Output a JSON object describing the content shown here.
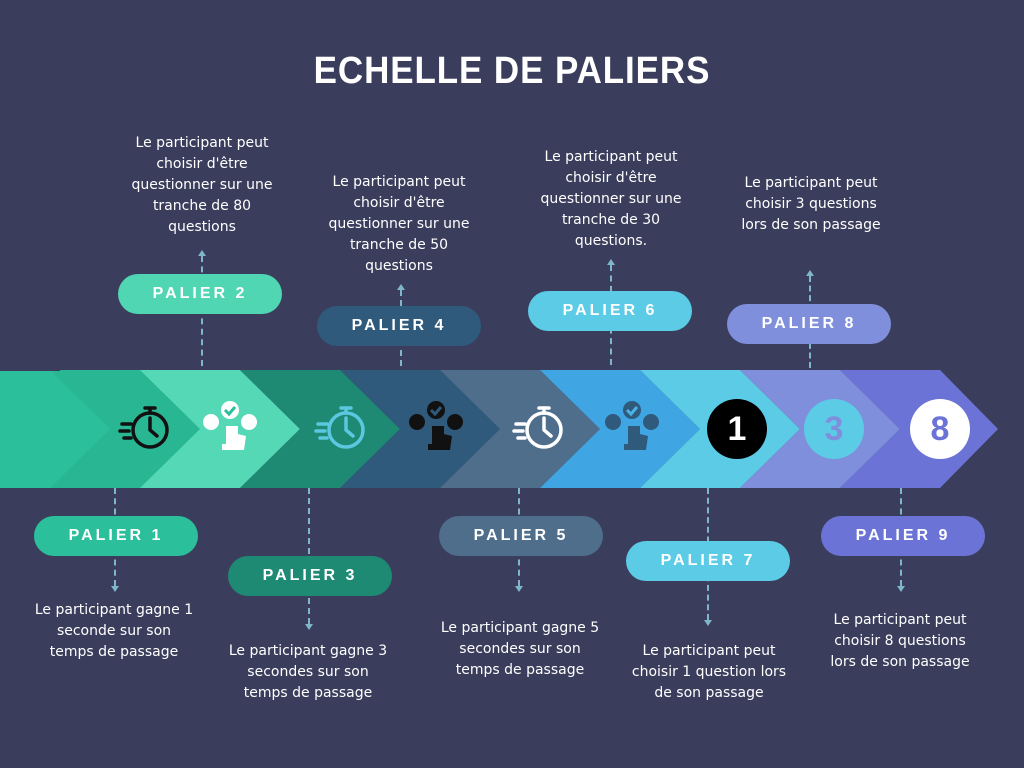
{
  "title": "ECHELLE DE PALIERS",
  "colors": {
    "background": "#3a3e5c",
    "seg1": "#2bbf9b",
    "seg2": "#50d6b2",
    "seg3": "#1f8a74",
    "seg4": "#2f5a7c",
    "seg5": "#4f6e8c",
    "seg6": "#4ab4e6",
    "seg7": "#5ccbe6",
    "seg8": "#7f8fdc",
    "seg9": "#6b74d6"
  },
  "paliers": [
    {
      "label": "PALIER 1",
      "text": "Le participant gagne 1 seconde sur son temps de passage",
      "icon": "stopwatch-icon"
    },
    {
      "label": "PALIER 2",
      "text": "Le participant peut choisir d'être questionner sur une tranche de 80 questions",
      "icon": "select-touch-icon"
    },
    {
      "label": "PALIER 3",
      "text": "Le participant gagne 3 secondes sur son temps de passage",
      "icon": "stopwatch-icon"
    },
    {
      "label": "PALIER 4",
      "text": "Le participant peut choisir d'être questionner sur une tranche de 50 questions",
      "icon": "select-touch-icon"
    },
    {
      "label": "PALIER 5",
      "text": "Le participant gagne 5 secondes sur son temps de passage",
      "icon": "stopwatch-icon"
    },
    {
      "label": "PALIER 6",
      "text": "Le participant peut choisir d'être questionner sur une tranche de 30 questions.",
      "icon": "select-touch-icon"
    },
    {
      "label": "PALIER 7",
      "text": "Le participant peut choisir 1 question lors de son passage",
      "icon": "number-1-badge"
    },
    {
      "label": "PALIER 8",
      "text": "Le participant peut choisir 3 questions lors de son passage",
      "icon": "number-3-badge"
    },
    {
      "label": "PALIER 9",
      "text": "Le participant peut choisir 8 questions lors de son passage",
      "icon": "number-8-badge"
    }
  ],
  "badges": {
    "b7": "1",
    "b8": "3",
    "b9": "8"
  }
}
